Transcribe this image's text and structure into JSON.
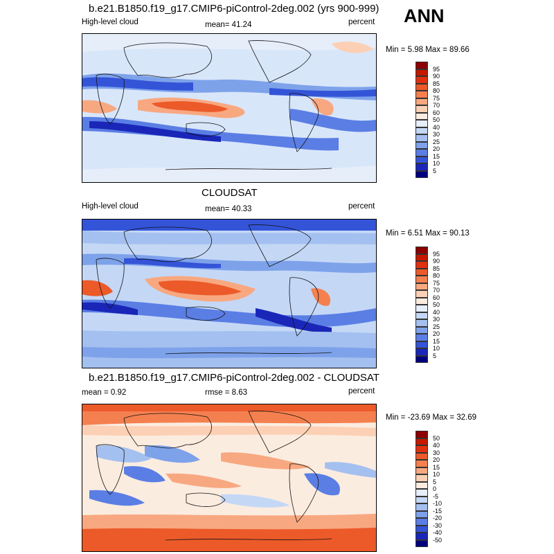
{
  "season": "ANN",
  "panels": [
    {
      "title": "b.e21.B1850.f19_g17.CMIP6-piControl-2deg.002 (yrs 900-999)",
      "left_label": "High-level cloud",
      "center_label": "mean=  41.24",
      "right_label": "percent",
      "minmax": "Min =   5.98 Max =  89.66",
      "colorbar_labels": [
        "95",
        "90",
        "85",
        "80",
        "75",
        "70",
        "60",
        "50",
        "40",
        "30",
        "25",
        "20",
        "15",
        "10",
        "5"
      ],
      "colorbar_colors": [
        "#8b0000",
        "#c41800",
        "#e03010",
        "#ec5a2a",
        "#f48050",
        "#f8a880",
        "#fcd0b4",
        "#fbece0",
        "#e6eefa",
        "#c4d8f6",
        "#a4c0f0",
        "#7ea2ea",
        "#5a7ee4",
        "#3454d8",
        "#1a26b8",
        "#00007f"
      ]
    },
    {
      "title": "CLOUDSAT",
      "left_label": "High-level cloud",
      "center_label": "mean=  40.33",
      "right_label": "percent",
      "minmax": "Min =   6.51 Max =  90.13",
      "colorbar_labels": [
        "95",
        "90",
        "85",
        "80",
        "75",
        "70",
        "60",
        "50",
        "40",
        "30",
        "25",
        "20",
        "15",
        "10",
        "5"
      ],
      "colorbar_colors": [
        "#8b0000",
        "#c41800",
        "#e03010",
        "#ec5a2a",
        "#f48050",
        "#f8a880",
        "#fcd0b4",
        "#fbece0",
        "#e6eefa",
        "#c4d8f6",
        "#a4c0f0",
        "#7ea2ea",
        "#5a7ee4",
        "#3454d8",
        "#1a26b8",
        "#00007f"
      ]
    },
    {
      "title": "b.e21.B1850.f19_g17.CMIP6-piControl-2deg.002 - CLOUDSAT",
      "left_label": "mean =    0.92",
      "center_label": "rmse =   8.63",
      "right_label": "percent",
      "minmax": "Min = -23.69 Max =  32.69",
      "colorbar_labels": [
        "50",
        "40",
        "30",
        "20",
        "15",
        "10",
        "5",
        "0",
        "-5",
        "-10",
        "-15",
        "-20",
        "-30",
        "-40",
        "-50"
      ],
      "colorbar_colors": [
        "#8b0000",
        "#c41800",
        "#e03010",
        "#ec5a2a",
        "#f48050",
        "#f8a880",
        "#fcd0b4",
        "#fbece0",
        "#e6eefa",
        "#c4d8f6",
        "#a4c0f0",
        "#7ea2ea",
        "#5a7ee4",
        "#3454d8",
        "#1a26b8",
        "#00007f"
      ]
    }
  ]
}
